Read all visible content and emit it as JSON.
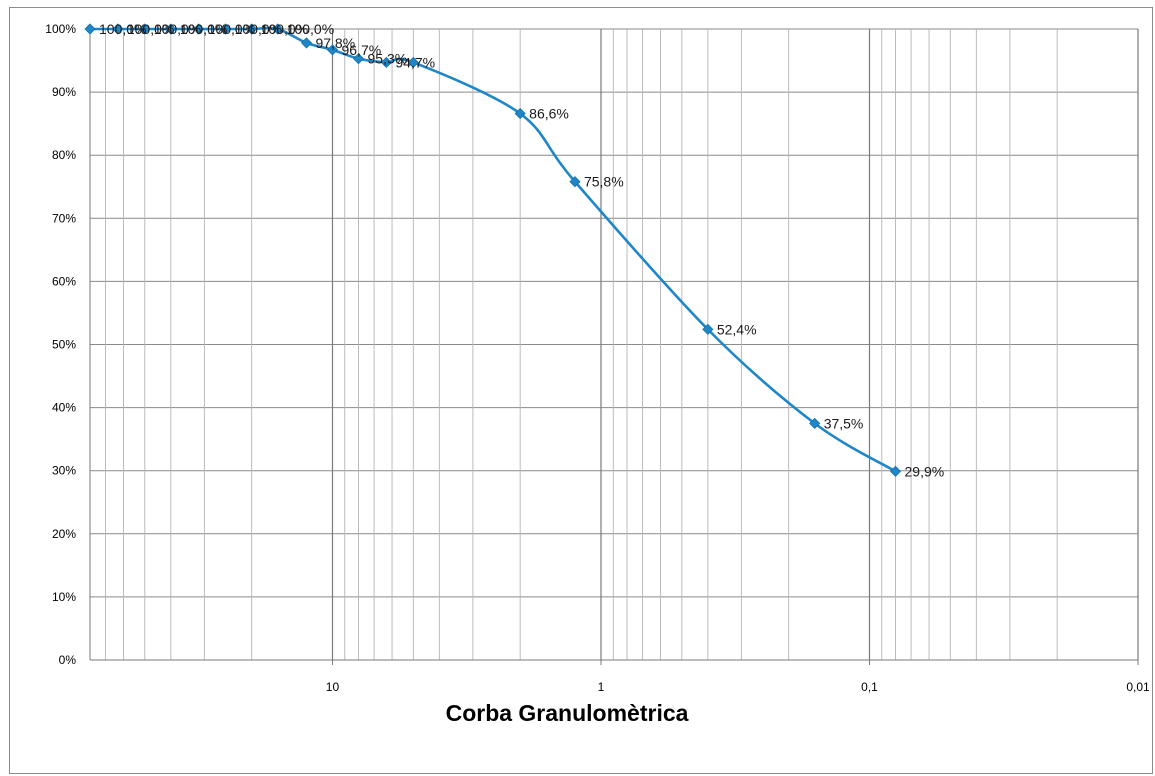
{
  "chart_data": {
    "type": "line",
    "title": "",
    "xlabel": "Corba Granulomètrica",
    "ylabel": "",
    "x_scale": "log",
    "x_reversed": true,
    "xlim": [
      80,
      0.01
    ],
    "ylim": [
      0,
      100
    ],
    "grid": true,
    "legend": "none",
    "series_color": "#1f86c8",
    "x_tick_labels": [
      {
        "value": 10,
        "label": "10"
      },
      {
        "value": 1,
        "label": "1"
      },
      {
        "value": 0.1,
        "label": "0,1"
      },
      {
        "value": 0.01,
        "label": "0,01"
      }
    ],
    "y_tick_labels": [
      "0%",
      "10%",
      "20%",
      "30%",
      "40%",
      "50%",
      "60%",
      "70%",
      "80%",
      "90%",
      "100%"
    ],
    "series": [
      {
        "x": [
          80,
          63,
          50,
          40,
          31.5,
          25,
          20,
          16,
          12.5,
          10,
          8,
          6.3,
          5,
          2,
          1.25,
          0.4,
          0.16,
          0.08
        ],
        "values": [
          100.0,
          100.0,
          100.0,
          100.0,
          100.0,
          100.0,
          100.0,
          100.0,
          97.8,
          96.7,
          95.3,
          94.7,
          94.7,
          86.6,
          75.8,
          52.4,
          37.5,
          29.9
        ],
        "labels": [
          "100,0%",
          "100,0%",
          "100,0%",
          "100,0%",
          "100,0%",
          "100,0%",
          "100,0%",
          "100,0%",
          "97,8%",
          "96,7%",
          "95,3%",
          "94,7%",
          "",
          "86,6%",
          "75,8%",
          "52,4%",
          "37,5%",
          "29,9%"
        ]
      }
    ]
  }
}
